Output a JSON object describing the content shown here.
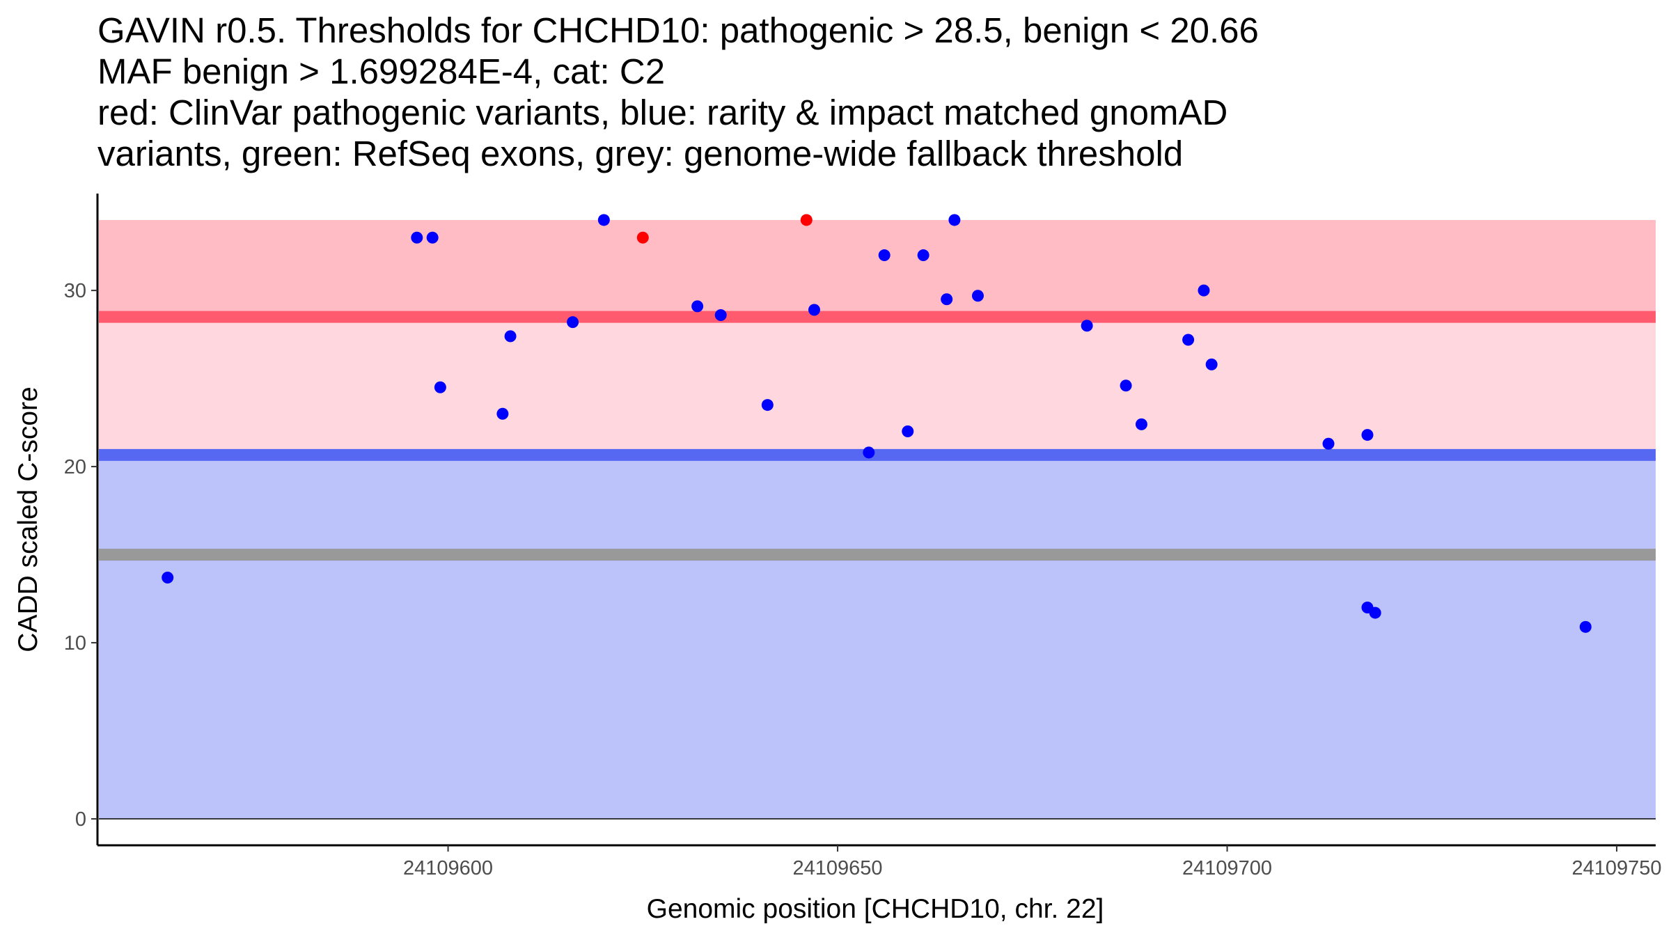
{
  "title_lines": [
    "GAVIN r0.5. Thresholds for CHCHD10: pathogenic > 28.5, benign < 20.66",
    "MAF benign > 1.699284E-4, cat: C2",
    "red: ClinVar pathogenic variants, blue: rarity & impact matched gnomAD",
    "variants, green: RefSeq exons, grey: genome-wide fallback threshold"
  ],
  "chart_data": {
    "type": "scatter",
    "xlabel": "Genomic position [CHCHD10, chr. 22]",
    "ylabel": "CADD scaled C-score",
    "xlim": [
      24109555,
      24109755
    ],
    "ylim": [
      -1.5,
      35.5
    ],
    "x_ticks": [
      24109600,
      24109650,
      24109700,
      24109750
    ],
    "y_ticks": [
      0,
      10,
      20,
      30
    ],
    "colors": {
      "pathogenic_band": "#ffbcc4",
      "mid_band": "#ffd7de",
      "benign_band": "#bcc2fa",
      "pathogenic_line": "#ff5a6e",
      "benign_line": "#5667f2",
      "fallback_line": "#999999",
      "benign_points": "#0000ff",
      "pathogenic_points": "#ff0000"
    },
    "bands": [
      {
        "name": "pathogenic-zone",
        "from": 28.5,
        "to": 34,
        "color_key": "pathogenic_band"
      },
      {
        "name": "uncertain-zone",
        "from": 20.66,
        "to": 28.5,
        "color_key": "mid_band"
      },
      {
        "name": "benign-zone",
        "from": 0,
        "to": 20.66,
        "color_key": "benign_band"
      }
    ],
    "threshold_lines": [
      {
        "name": "pathogenic-threshold",
        "y": 28.5,
        "color_key": "pathogenic_line"
      },
      {
        "name": "benign-threshold",
        "y": 20.66,
        "color_key": "benign_line"
      },
      {
        "name": "fallback-threshold",
        "y": 15,
        "color_key": "fallback_line"
      }
    ],
    "series": [
      {
        "name": "gnomAD matched variants",
        "color_key": "benign_points",
        "points": [
          [
            24109564,
            13.7
          ],
          [
            24109596,
            33
          ],
          [
            24109598,
            33
          ],
          [
            24109599,
            24.5
          ],
          [
            24109607,
            23
          ],
          [
            24109608,
            27.4
          ],
          [
            24109616,
            28.2
          ],
          [
            24109620,
            34
          ],
          [
            24109632,
            29.1
          ],
          [
            24109635,
            28.6
          ],
          [
            24109641,
            23.5
          ],
          [
            24109647,
            28.9
          ],
          [
            24109654,
            20.8
          ],
          [
            24109656,
            32
          ],
          [
            24109659,
            22
          ],
          [
            24109661,
            32
          ],
          [
            24109664,
            29.5
          ],
          [
            24109665,
            34
          ],
          [
            24109668,
            29.7
          ],
          [
            24109682,
            28
          ],
          [
            24109687,
            24.6
          ],
          [
            24109689,
            22.4
          ],
          [
            24109695,
            27.2
          ],
          [
            24109697,
            30
          ],
          [
            24109698,
            25.8
          ],
          [
            24109713,
            21.3
          ],
          [
            24109718,
            21.8
          ],
          [
            24109718,
            12
          ],
          [
            24109719,
            11.7
          ],
          [
            24109746,
            10.9
          ]
        ]
      },
      {
        "name": "ClinVar pathogenic variants",
        "color_key": "pathogenic_points",
        "points": [
          [
            24109625,
            33
          ],
          [
            24109646,
            34
          ]
        ]
      }
    ]
  }
}
